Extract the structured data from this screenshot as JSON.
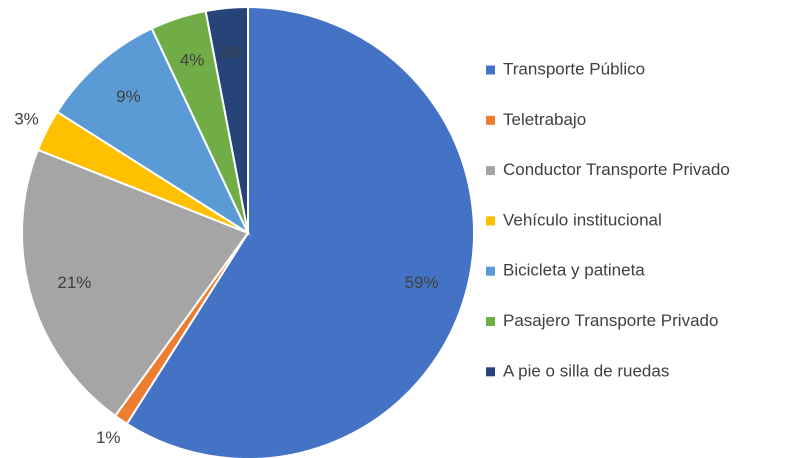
{
  "chart_data": {
    "type": "pie",
    "categories": [
      "Transporte Público",
      "Teletrabajo",
      "Conductor Transporte Privado",
      "Vehículo institucional",
      "Bicicleta y patineta",
      "Pasajero Transporte Privado",
      "A pie o silla de ruedas"
    ],
    "values": [
      59,
      1,
      21,
      3,
      9,
      4,
      3
    ],
    "value_labels": [
      "59%",
      "1%",
      "21%",
      "3%",
      "9%",
      "4%",
      "3%"
    ],
    "colors": [
      "#4472c4",
      "#ed7d31",
      "#a5a5a5",
      "#ffc000",
      "#5b9bd5",
      "#70ad47",
      "#264478"
    ],
    "legend": "right"
  }
}
